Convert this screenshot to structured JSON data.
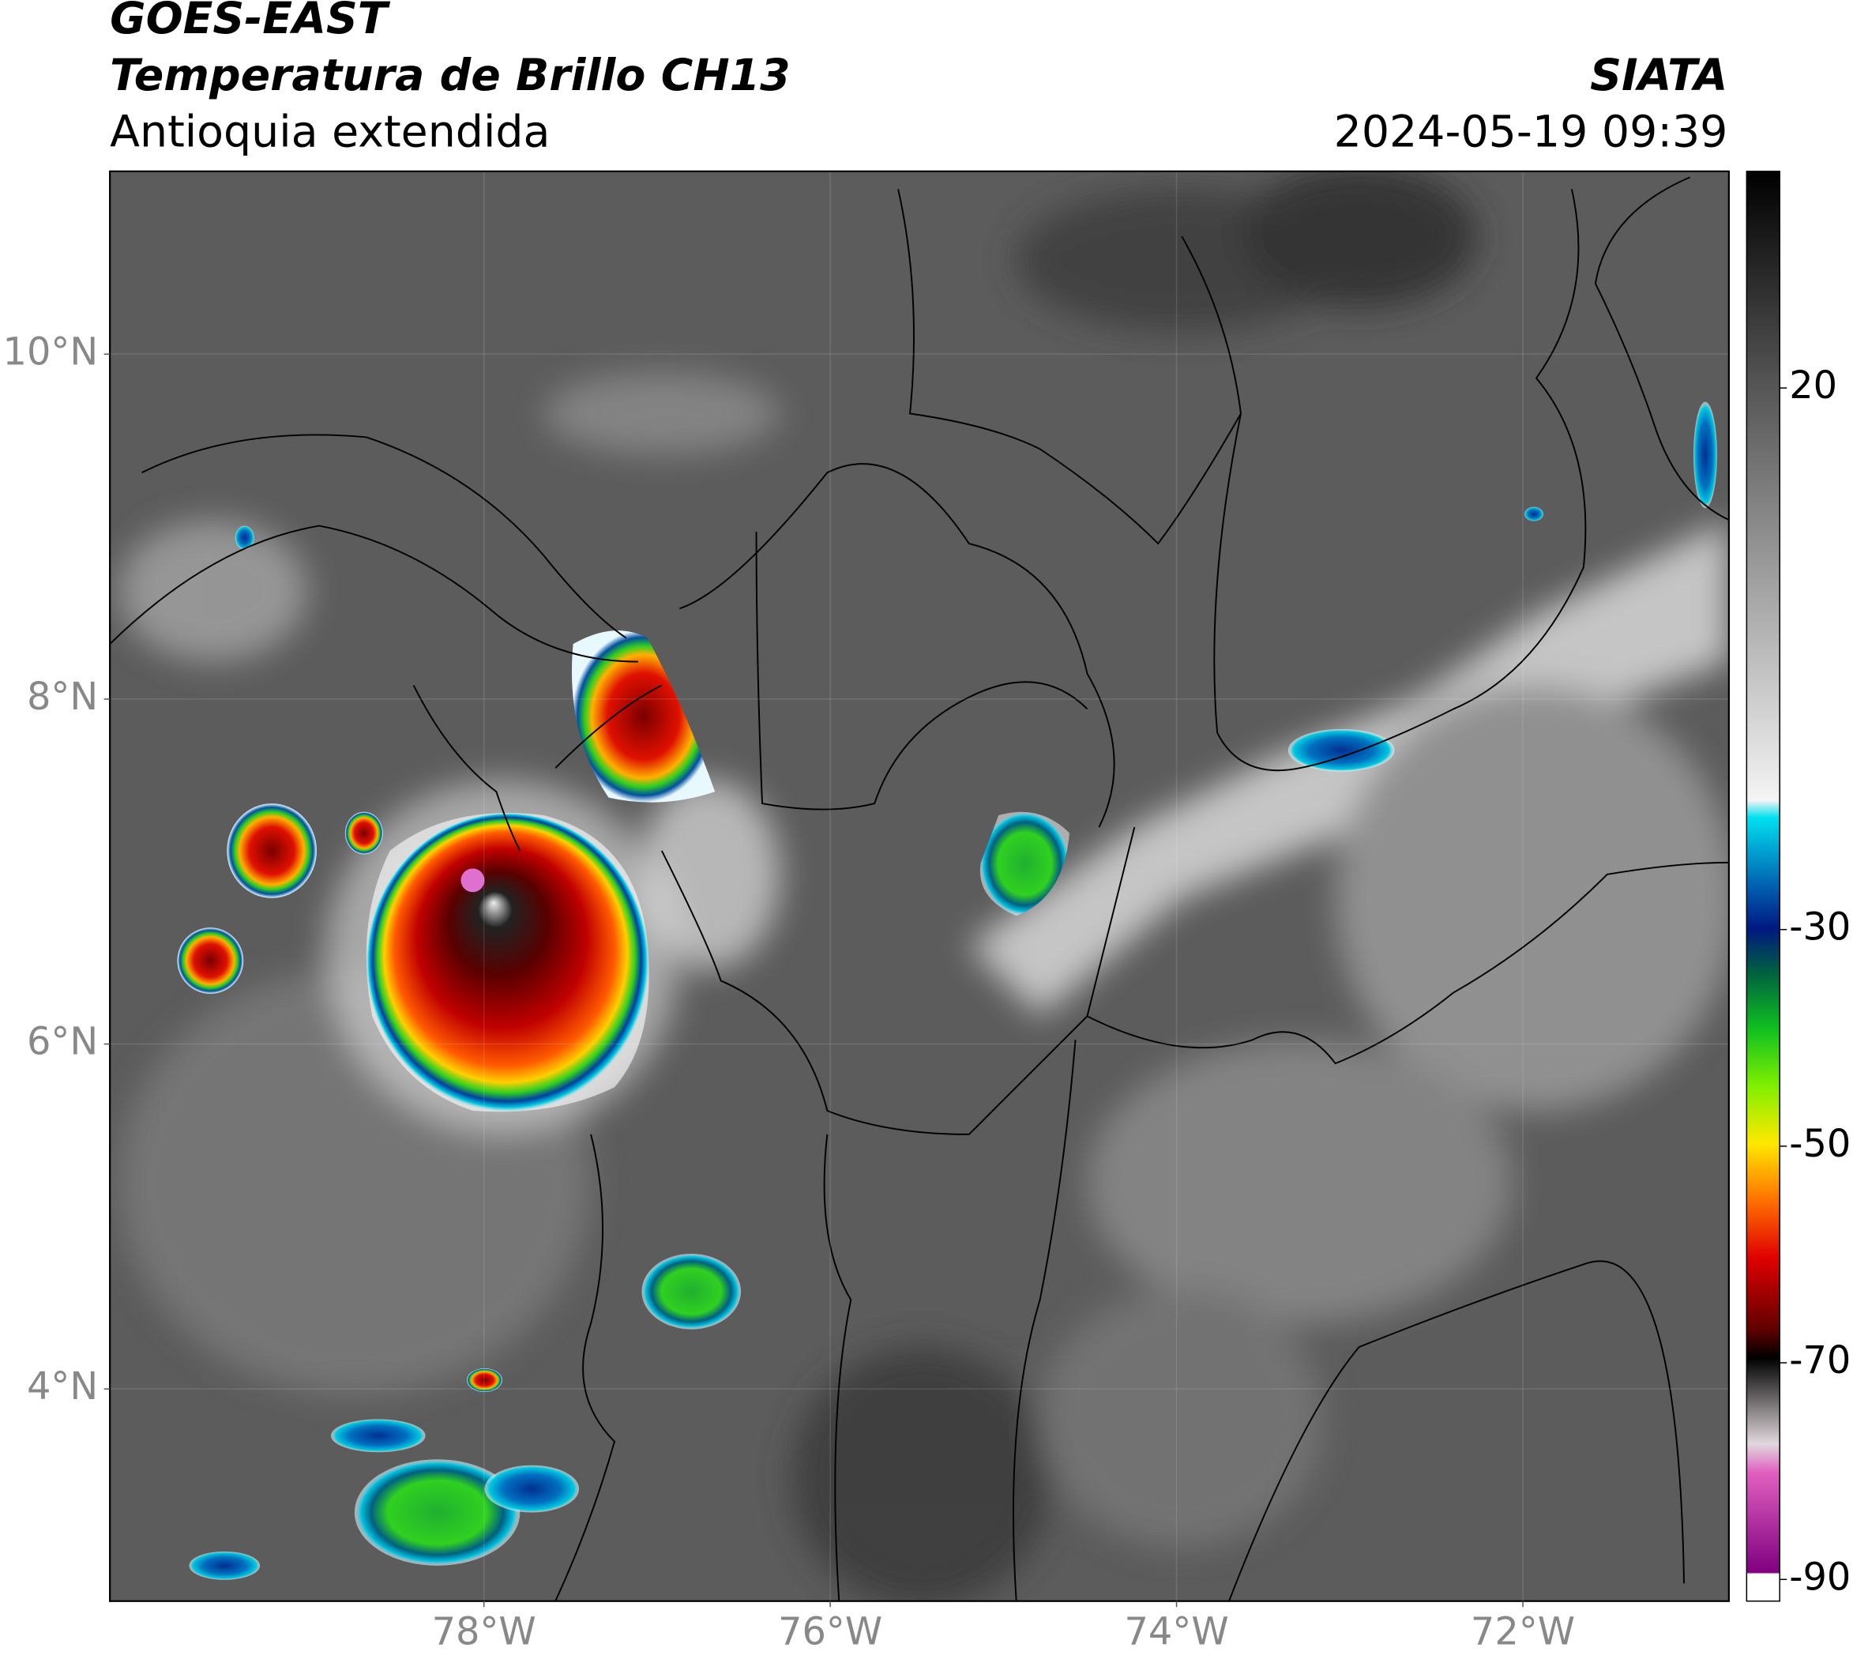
{
  "header": {
    "title": "GOES-EAST",
    "subtitle": "Temperatura de Brillo CH13",
    "region": "Antioquia extendida",
    "source": "SIATA",
    "timestamp": "2024-05-19 09:39"
  },
  "map": {
    "lonlim": [
      -80.16,
      -70.81
    ],
    "latlim": [
      2.77,
      11.06
    ],
    "lon_ticks": [
      {
        "value": -78,
        "label": "78°W"
      },
      {
        "value": -76,
        "label": "76°W"
      },
      {
        "value": -74,
        "label": "74°W"
      },
      {
        "value": -72,
        "label": "72°W"
      }
    ],
    "lat_ticks": [
      {
        "value": 10,
        "label": "10°N"
      },
      {
        "value": 8,
        "label": "8°N"
      },
      {
        "value": 6,
        "label": "6°N"
      },
      {
        "value": 4,
        "label": "4°N"
      }
    ]
  },
  "colorbar": {
    "lim": [
      -92,
      40
    ],
    "ticks": [
      20,
      -30,
      -50,
      -70,
      -90
    ]
  }
}
